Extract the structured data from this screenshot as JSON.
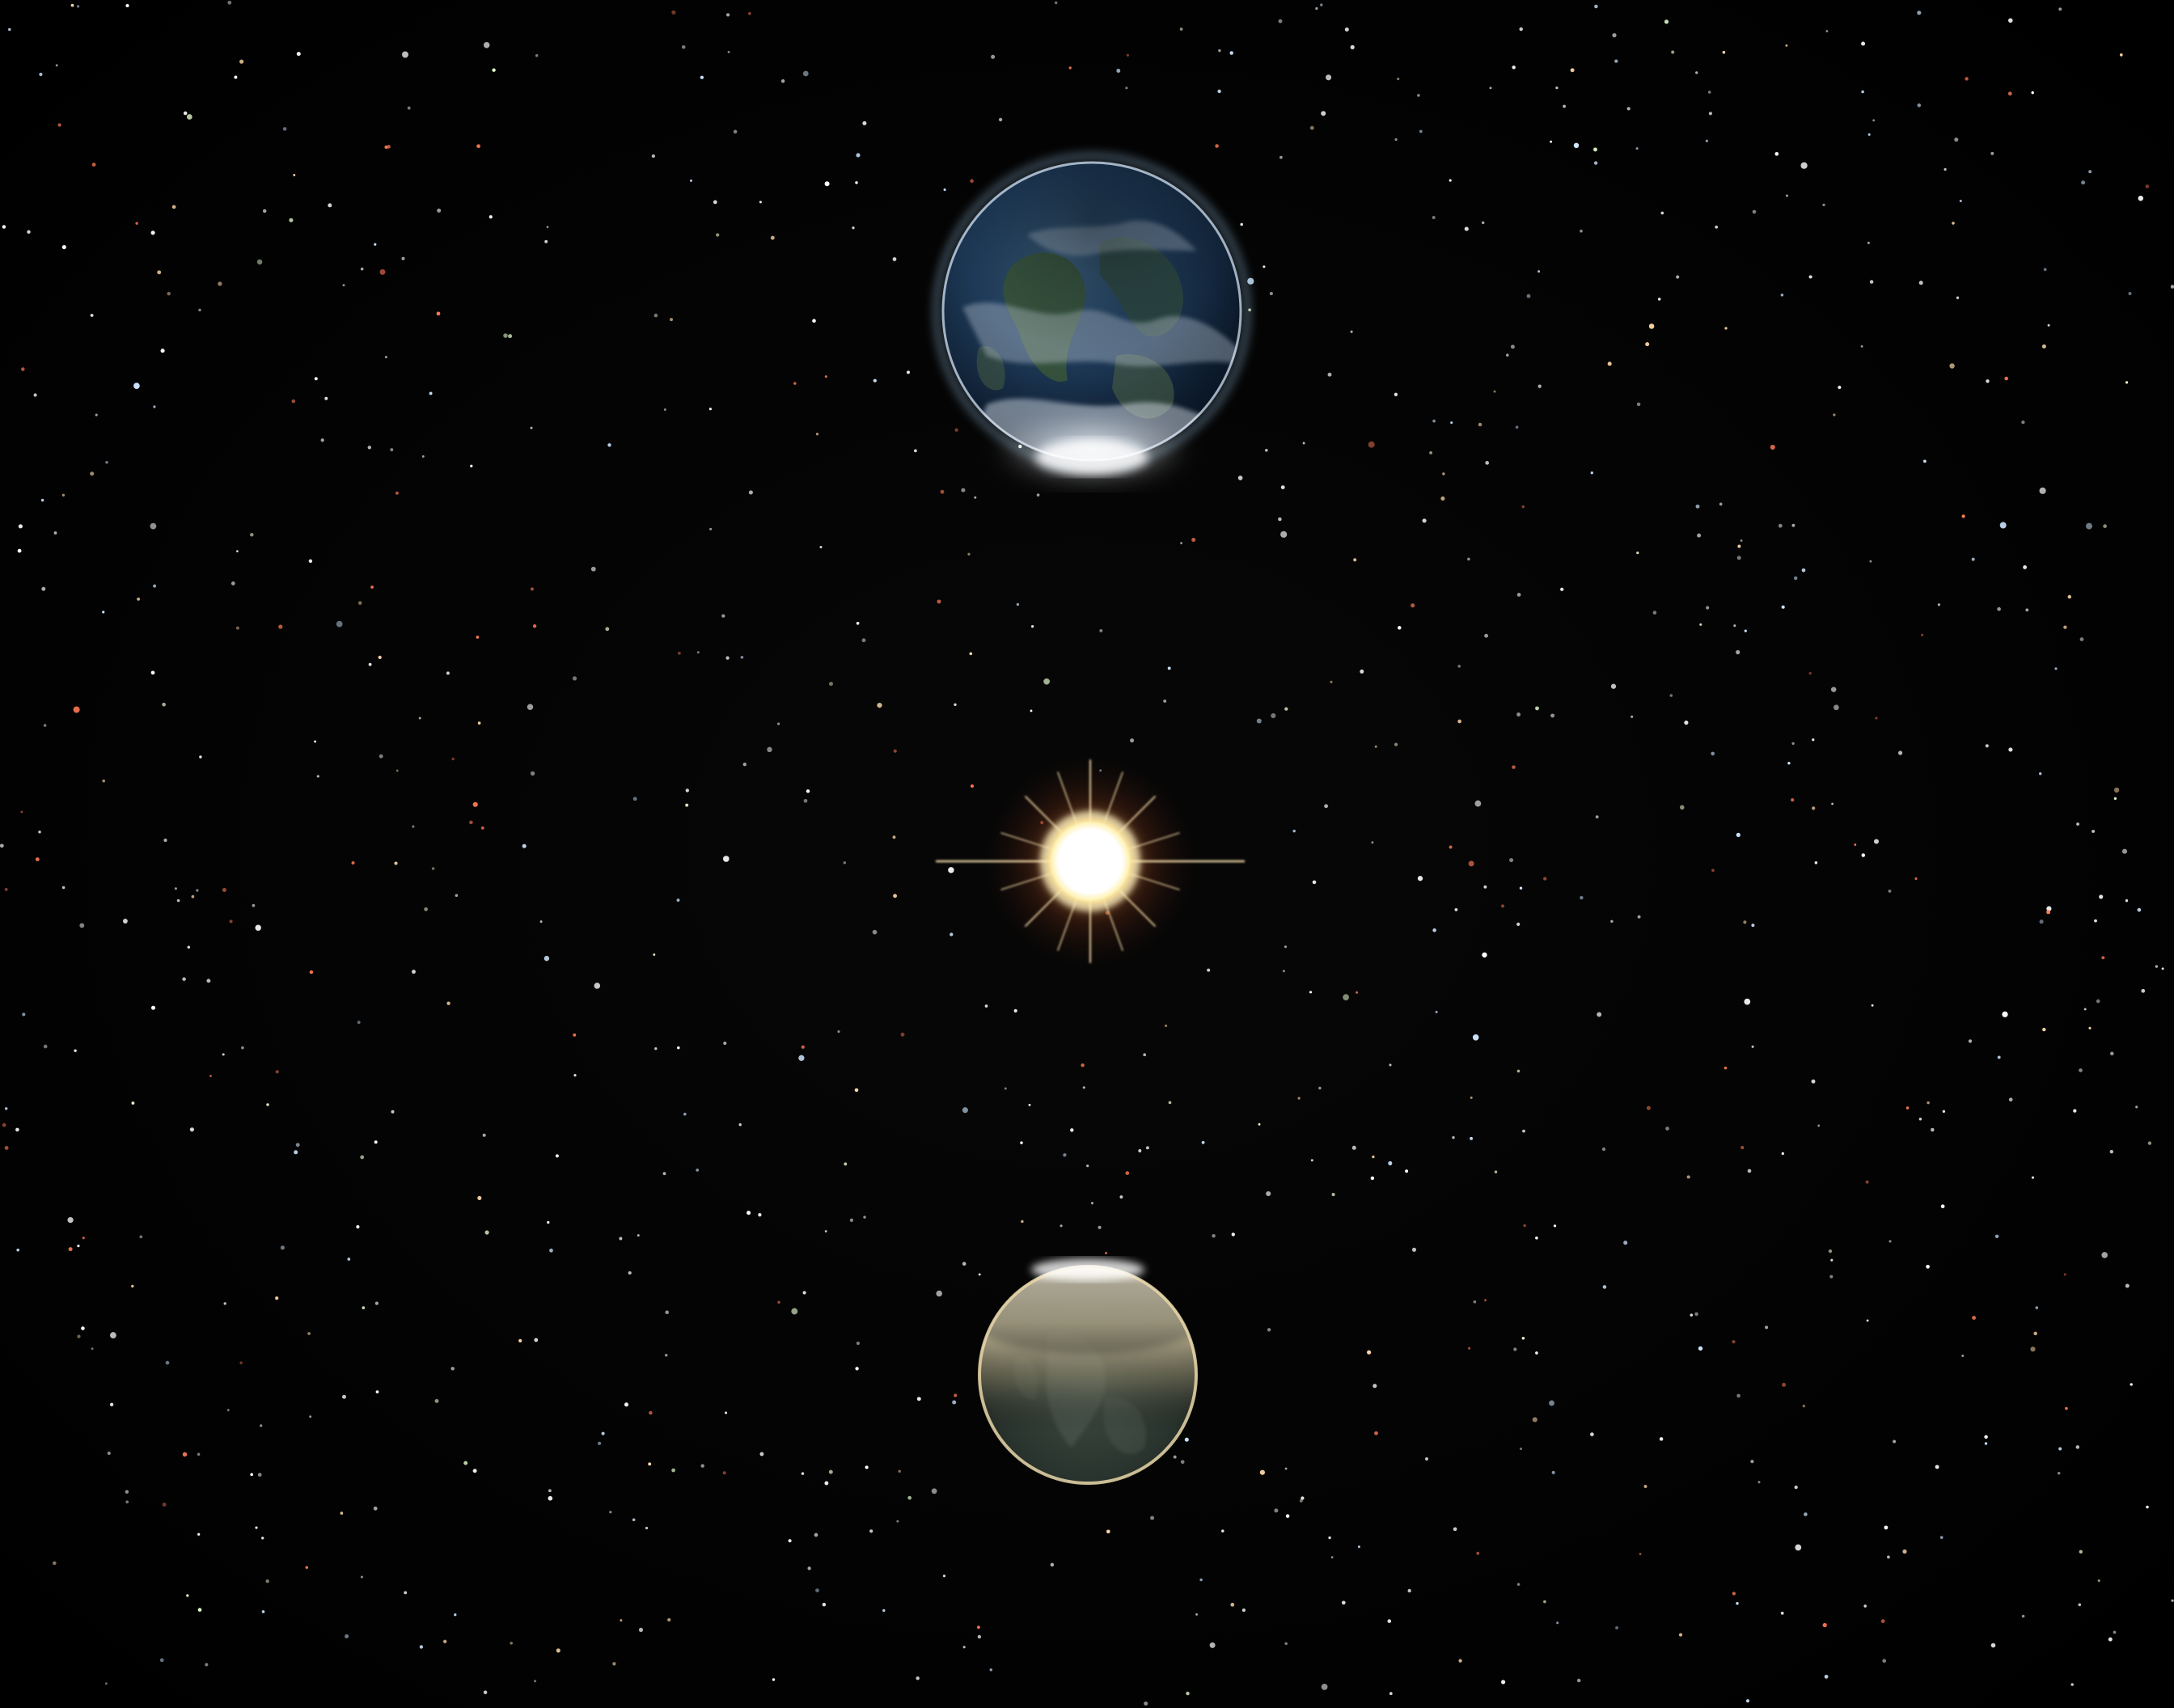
{
  "scene": {
    "background_color": "#020202",
    "star_colors": [
      "#ffffff",
      "#cfe6ff",
      "#ffd9a8",
      "#ff7a55",
      "#e8ffd0"
    ]
  },
  "bodies": [
    {
      "name": "earth",
      "colors": {
        "ocean": "#1b3552",
        "land": "#3f5a3a",
        "atmosphere": "#9fd4ff",
        "glow": "#ffffff"
      }
    },
    {
      "name": "sun",
      "colors": {
        "core": "#ffffff",
        "halo": "#ffd36a",
        "corona": "#b0592a"
      }
    },
    {
      "name": "moon",
      "colors": {
        "lit_limb": "#f2e6c7",
        "shadow": "#2f3a33",
        "rim": "#d9c99c"
      }
    }
  ]
}
